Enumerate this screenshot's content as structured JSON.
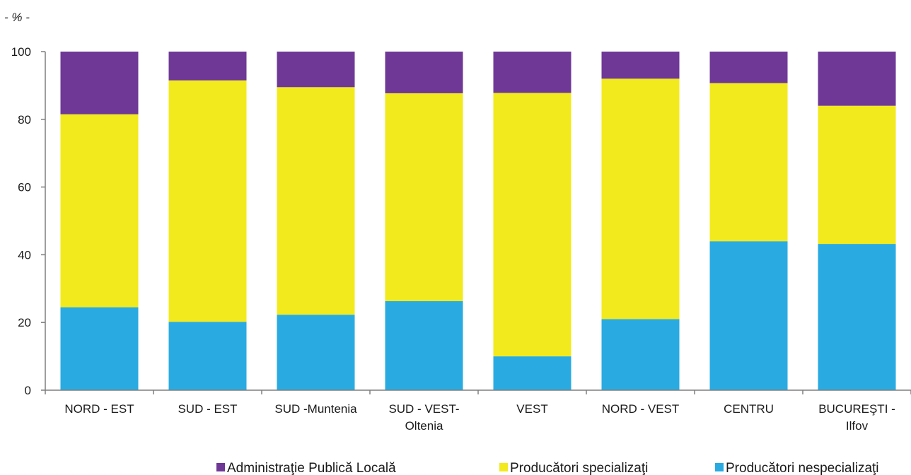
{
  "chart_data": {
    "type": "bar",
    "stacked": true,
    "unit_label": "- % -",
    "categories": [
      [
        "NORD - EST"
      ],
      [
        "SUD - EST"
      ],
      [
        "SUD -Muntenia"
      ],
      [
        "SUD - VEST-",
        "Oltenia"
      ],
      [
        "VEST"
      ],
      [
        "NORD - VEST"
      ],
      [
        "CENTRU"
      ],
      [
        "BUCUREŞTI -",
        "Ilfov"
      ]
    ],
    "series": [
      {
        "name": "Producători nespecializaţi",
        "color": "#29abe2",
        "values": [
          24.5,
          20.2,
          22.3,
          26.3,
          10.0,
          21.0,
          44.0,
          43.2
        ]
      },
      {
        "name": "Producători specializaţi",
        "color": "#f2ea1d",
        "values": [
          57.0,
          71.3,
          67.2,
          61.4,
          77.8,
          71.0,
          46.7,
          40.8
        ]
      },
      {
        "name": "Administraţie Publică Locală",
        "color": "#6f3897",
        "values": [
          18.5,
          8.5,
          10.5,
          12.3,
          12.2,
          8.0,
          9.3,
          16.0
        ]
      }
    ],
    "legend_order": [
      2,
      1,
      0
    ],
    "legend_position": "bottom",
    "ylim": [
      0,
      100
    ],
    "yticks": [
      0,
      20,
      40,
      60,
      80,
      100
    ],
    "grid": false
  }
}
